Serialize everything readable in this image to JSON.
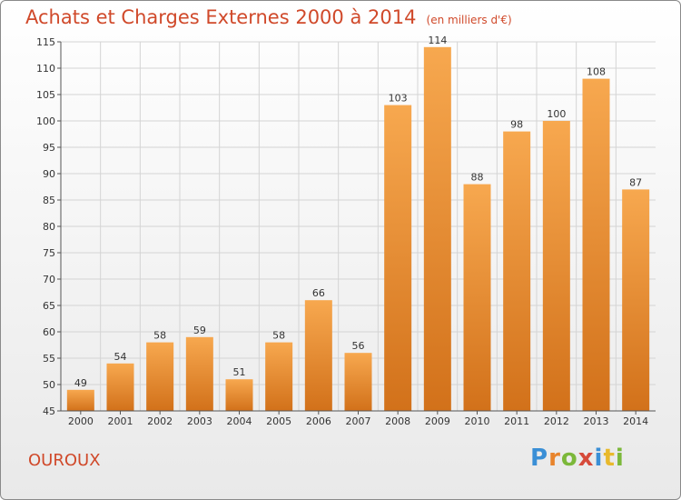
{
  "header": {
    "title": "Achats et Charges Externes 2000 à 2014",
    "subtitle": "(en milliers d'€)"
  },
  "footer": {
    "commune": "OUROUX",
    "logo_text": "Proxiti",
    "logo_colors": [
      "#3a8fd6",
      "#e8842c",
      "#7cb83a",
      "#d64a3a",
      "#3a8fd6",
      "#e8b92c",
      "#7cb83a"
    ]
  },
  "colors": {
    "bar_light": "#f7a84f",
    "bar_dark": "#d2711a",
    "title": "#d0492a",
    "grid": "#d4d4d4",
    "axis": "#555555"
  },
  "chart_data": {
    "type": "bar",
    "categories": [
      "2000",
      "2001",
      "2002",
      "2003",
      "2004",
      "2005",
      "2006",
      "2007",
      "2008",
      "2009",
      "2010",
      "2011",
      "2012",
      "2013",
      "2014"
    ],
    "values": [
      49,
      54,
      58,
      59,
      51,
      58,
      66,
      56,
      103,
      114,
      88,
      98,
      100,
      108,
      87
    ],
    "ylim": [
      45,
      115
    ],
    "yticks": [
      45,
      50,
      55,
      60,
      65,
      70,
      75,
      80,
      85,
      90,
      95,
      100,
      105,
      110,
      115
    ],
    "grid": true,
    "legend": "none"
  }
}
